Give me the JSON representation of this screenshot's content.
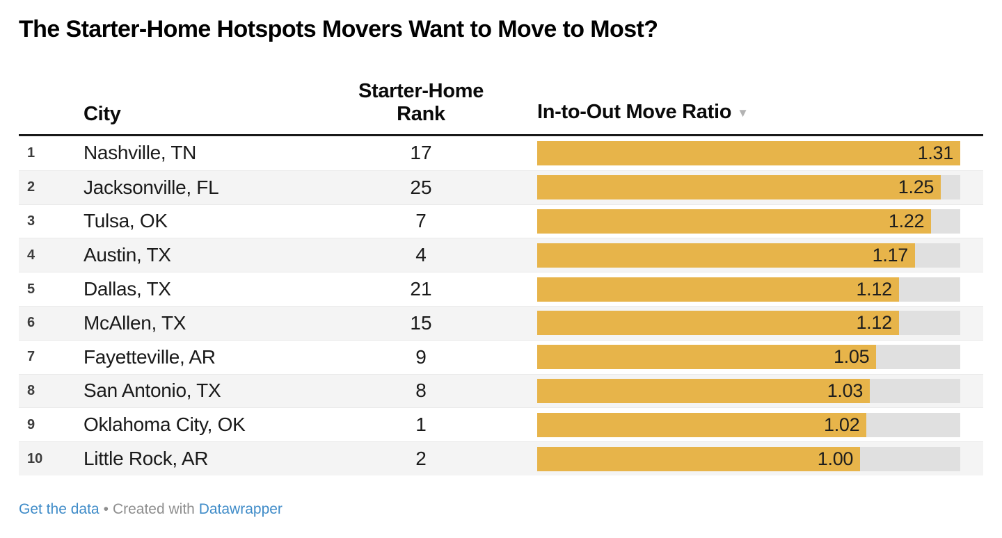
{
  "title": "The Starter-Home Hotspots Movers Want to Move to Most?",
  "colors": {
    "bar": "#e7b44a",
    "bar_track": "#e0e0e0",
    "header_rule": "#191919",
    "zebra_row": "#f4f4f4",
    "link_blue": "#3e8bc8",
    "muted_text": "#8e8e8e"
  },
  "table": {
    "headers": {
      "city": "City",
      "starter_home_rank": "Starter-Home Rank",
      "ratio": "In-to-Out Move Ratio"
    },
    "sort_indicator": "▼",
    "rows": [
      {
        "rank": "1",
        "city": "Nashville, TN",
        "starter_home_rank": "17",
        "ratio": 1.31,
        "ratio_label": "1.31"
      },
      {
        "rank": "2",
        "city": "Jacksonville, FL",
        "starter_home_rank": "25",
        "ratio": 1.25,
        "ratio_label": "1.25"
      },
      {
        "rank": "3",
        "city": "Tulsa, OK",
        "starter_home_rank": "7",
        "ratio": 1.22,
        "ratio_label": "1.22"
      },
      {
        "rank": "4",
        "city": "Austin, TX",
        "starter_home_rank": "4",
        "ratio": 1.17,
        "ratio_label": "1.17"
      },
      {
        "rank": "5",
        "city": "Dallas, TX",
        "starter_home_rank": "21",
        "ratio": 1.12,
        "ratio_label": "1.12"
      },
      {
        "rank": "6",
        "city": "McAllen, TX",
        "starter_home_rank": "15",
        "ratio": 1.12,
        "ratio_label": "1.12"
      },
      {
        "rank": "7",
        "city": "Fayetteville, AR",
        "starter_home_rank": "9",
        "ratio": 1.05,
        "ratio_label": "1.05"
      },
      {
        "rank": "8",
        "city": "San Antonio, TX",
        "starter_home_rank": "8",
        "ratio": 1.03,
        "ratio_label": "1.03"
      },
      {
        "rank": "9",
        "city": "Oklahoma City, OK",
        "starter_home_rank": "1",
        "ratio": 1.02,
        "ratio_label": "1.02"
      },
      {
        "rank": "10",
        "city": "Little Rock, AR",
        "starter_home_rank": "2",
        "ratio": 1.0,
        "ratio_label": "1.00"
      }
    ]
  },
  "footer": {
    "get_data_link": "Get the data",
    "separator": "•",
    "created_with": "Created with",
    "datawrapper_link": "Datawrapper"
  },
  "chart_data": {
    "type": "bar",
    "orientation": "horizontal",
    "title": "The Starter-Home Hotspots Movers Want to Move to Most?",
    "categories": [
      "Nashville, TN",
      "Jacksonville, FL",
      "Tulsa, OK",
      "Austin, TX",
      "Dallas, TX",
      "McAllen, TX",
      "Fayetteville, AR",
      "San Antonio, TX",
      "Oklahoma City, OK",
      "Little Rock, AR"
    ],
    "series": [
      {
        "name": "Starter-Home Rank",
        "values": [
          17,
          25,
          7,
          4,
          21,
          15,
          9,
          8,
          1,
          2
        ]
      },
      {
        "name": "In-to-Out Move Ratio",
        "values": [
          1.31,
          1.25,
          1.22,
          1.17,
          1.12,
          1.12,
          1.05,
          1.03,
          1.02,
          1.0
        ]
      }
    ],
    "bar_series": "In-to-Out Move Ratio",
    "xlim": [
      0,
      1.31
    ],
    "sorted_by": "In-to-Out Move Ratio",
    "sort_direction": "desc",
    "grid": false,
    "legend_position": "none",
    "bar_color": "#e7b44a"
  }
}
